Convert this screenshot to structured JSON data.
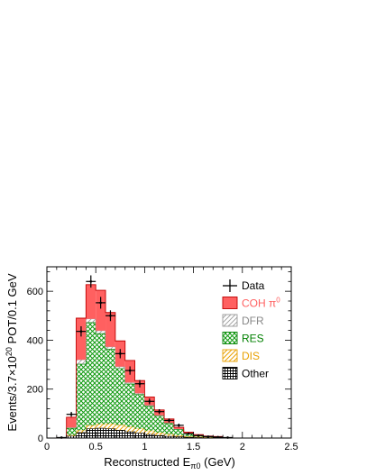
{
  "chart_data": {
    "type": "bar",
    "stacked": true,
    "xlabel": "Reconstructed E",
    "xlabel_sub": "π0",
    "xlabel_unit": " (GeV)",
    "ylabel_pre": "Events/3.7×10",
    "ylabel_sup": "20",
    "ylabel_post": " POT/0.1 GeV",
    "xlim": [
      0,
      2.5
    ],
    "ylim": [
      0,
      700
    ],
    "xticks": [
      0,
      0.5,
      1,
      1.5,
      2,
      2.5
    ],
    "xtick_labels": [
      "0",
      "0.5",
      "1",
      "1.5",
      "2",
      "2.5"
    ],
    "yticks": [
      0,
      200,
      400,
      600
    ],
    "ytick_labels": [
      "0",
      "200",
      "400",
      "600"
    ],
    "bin_edges": [
      0.1,
      0.2,
      0.3,
      0.4,
      0.5,
      0.6,
      0.7,
      0.8,
      0.9,
      1.0,
      1.1,
      1.2,
      1.3,
      1.4,
      1.5,
      1.6,
      1.7,
      1.8,
      1.9,
      2.0
    ],
    "series": [
      {
        "name": "Other",
        "color": "#000000",
        "pattern": "grid",
        "values": [
          0,
          8,
          22,
          38,
          40,
          38,
          32,
          26,
          20,
          15,
          10,
          7,
          5,
          3,
          2,
          1,
          1,
          0,
          0
        ]
      },
      {
        "name": "DIS",
        "color": "#e8a000",
        "pattern": "hatch",
        "values": [
          0,
          4,
          10,
          14,
          17,
          20,
          22,
          20,
          18,
          15,
          12,
          9,
          6,
          4,
          3,
          2,
          1,
          0,
          0
        ]
      },
      {
        "name": "RES",
        "color": "#008000",
        "pattern": "cross",
        "values": [
          1,
          28,
          270,
          420,
          370,
          305,
          230,
          175,
          140,
          100,
          68,
          44,
          24,
          12,
          6,
          4,
          3,
          1,
          0
        ]
      },
      {
        "name": "DFR",
        "color": "#aaaaaa",
        "pattern": "hatch",
        "values": [
          0,
          3,
          18,
          15,
          12,
          10,
          8,
          6,
          5,
          4,
          3,
          2,
          2,
          1,
          1,
          0,
          0,
          0,
          0
        ]
      },
      {
        "name": "COH π0",
        "color": "#ff6060",
        "pattern": "solid",
        "values": [
          1,
          42,
          170,
          140,
          165,
          140,
          105,
          90,
          52,
          34,
          22,
          16,
          7,
          4,
          2,
          1,
          1,
          0,
          0
        ]
      }
    ],
    "data_points": {
      "name": "Data",
      "x": [
        0.15,
        0.25,
        0.35,
        0.45,
        0.55,
        0.65,
        0.75,
        0.85,
        0.95,
        1.05,
        1.15,
        1.25,
        1.35,
        1.45,
        1.55,
        1.65,
        1.75,
        1.85
      ],
      "y": [
        2,
        97,
        436,
        640,
        553,
        500,
        345,
        276,
        222,
        150,
        108,
        72,
        52,
        18,
        10,
        6,
        4,
        2
      ],
      "yerr": [
        2,
        10,
        21,
        25,
        24,
        22,
        19,
        17,
        15,
        12,
        10,
        8,
        7,
        4,
        3,
        3,
        2,
        2
      ]
    },
    "legend": {
      "placement": "top-right",
      "entries": [
        {
          "label": "Data",
          "color": "#000000",
          "kind": "marker"
        },
        {
          "label": "COH π",
          "sup": "0",
          "color": "#ff6060",
          "kind": "solid"
        },
        {
          "label": "DFR",
          "color": "#aaaaaa",
          "kind": "hatch"
        },
        {
          "label": "RES",
          "color": "#008000",
          "kind": "cross"
        },
        {
          "label": "DIS",
          "color": "#e8a000",
          "kind": "hatch"
        },
        {
          "label": "Other",
          "color": "#000000",
          "kind": "grid"
        }
      ]
    }
  }
}
